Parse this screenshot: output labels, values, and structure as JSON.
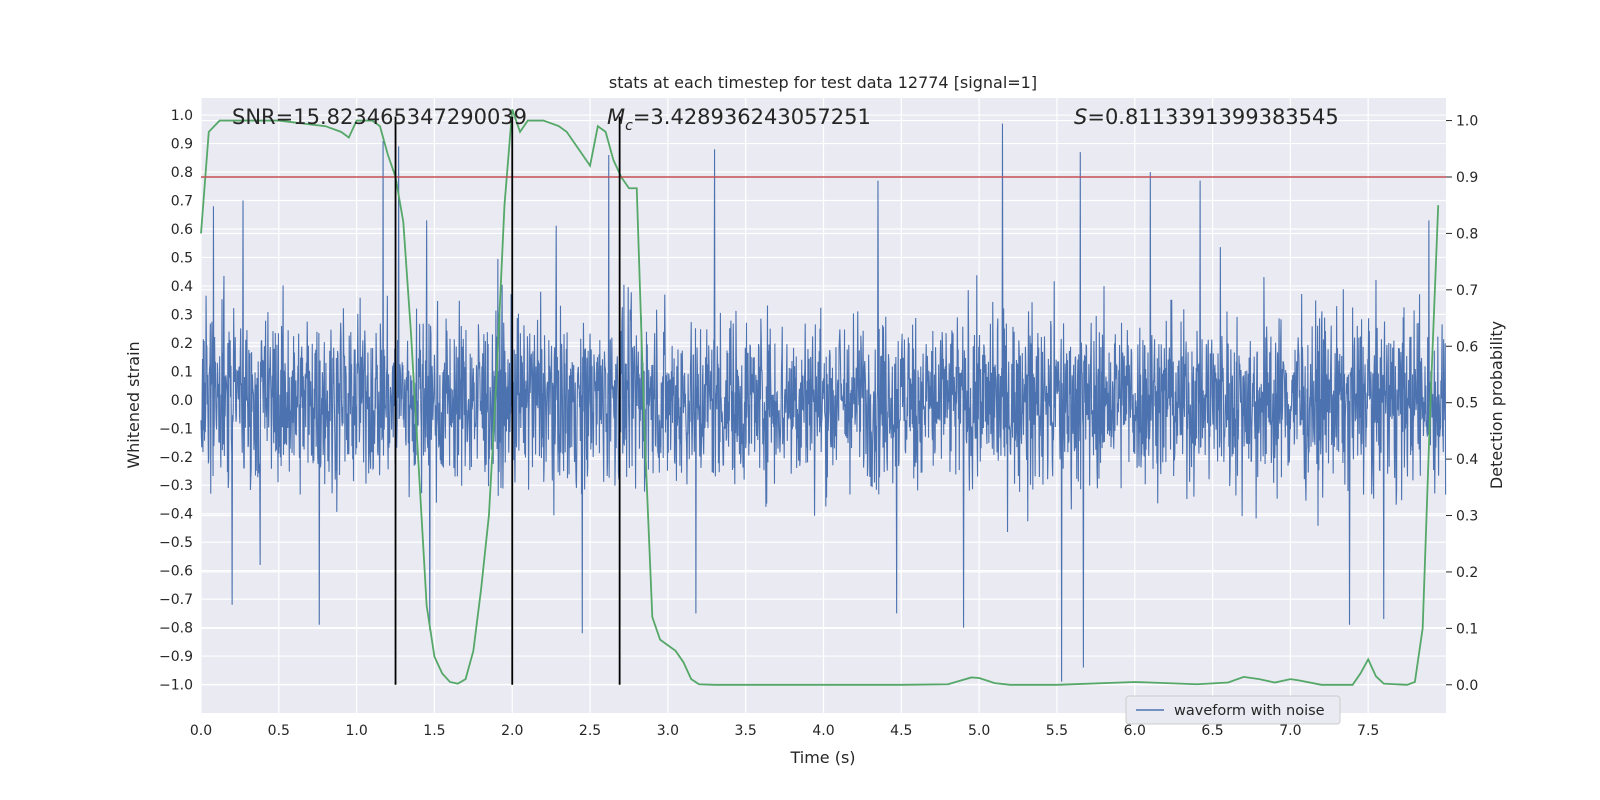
{
  "chart_data": {
    "type": "line",
    "title": "stats at each timestep for test data 12774 [signal=1]",
    "xlabel": "Time (s)",
    "ylabel_left": "Whitened strain",
    "ylabel_right": "Detection probability",
    "xlim": [
      0.0,
      8.0
    ],
    "ylim_left": [
      -1.1,
      1.06
    ],
    "ylim_right": [
      -0.05,
      1.04
    ],
    "x_ticks": [
      0.0,
      0.5,
      1.0,
      1.5,
      2.0,
      2.5,
      3.0,
      3.5,
      4.0,
      4.5,
      5.0,
      5.5,
      6.0,
      6.5,
      7.0,
      7.5
    ],
    "x_tick_labels": [
      "0.0",
      "0.5",
      "1.0",
      "1.5",
      "2.0",
      "2.5",
      "3.0",
      "3.5",
      "4.0",
      "4.5",
      "5.0",
      "5.5",
      "6.0",
      "6.5",
      "7.0",
      "7.5"
    ],
    "y_left_ticks": [
      1.0,
      0.9,
      0.8,
      0.7,
      0.6,
      0.5,
      0.4,
      0.3,
      0.2,
      0.1,
      0.0,
      -0.1,
      -0.2,
      -0.3,
      -0.4,
      -0.5,
      -0.6,
      -0.7,
      -0.8,
      -0.9,
      -1.0
    ],
    "y_left_tick_labels": [
      "1.0",
      "0.9",
      "0.8",
      "0.7",
      "0.6",
      "0.5",
      "0.4",
      "0.3",
      "0.2",
      "0.1",
      "0.0",
      "−0.1",
      "−0.2",
      "−0.3",
      "−0.4",
      "−0.5",
      "−0.6",
      "−0.7",
      "−0.8",
      "−0.9",
      "−1.0"
    ],
    "y_right_ticks": [
      1.0,
      0.9,
      0.8,
      0.7,
      0.6,
      0.5,
      0.4,
      0.3,
      0.2,
      0.1,
      0.0
    ],
    "y_right_tick_labels": [
      "1.0",
      "0.9",
      "0.8",
      "0.7",
      "0.6",
      "0.5",
      "0.4",
      "0.3",
      "0.2",
      "0.1",
      "0.0"
    ],
    "threshold_right": 0.9,
    "vertical_lines_x": [
      1.25,
      2.0,
      2.69
    ],
    "annotations": {
      "snr": "SNR=15.823465347290039",
      "mc_symbol": "M",
      "mc_sub": "c",
      "mc_value": "=3.428936243057251",
      "s_symbol": "S",
      "s_value": "=0.8113391399383545"
    },
    "legend": [
      "waveform with noise"
    ],
    "waveform": {
      "name": "waveform with noise",
      "typical_amplitude": 0.45,
      "spikes": [
        {
          "x": 0.08,
          "y": 0.68
        },
        {
          "x": 0.2,
          "y": -0.72
        },
        {
          "x": 0.27,
          "y": 0.7
        },
        {
          "x": 0.38,
          "y": -0.58
        },
        {
          "x": 0.76,
          "y": -0.79
        },
        {
          "x": 1.17,
          "y": 0.91
        },
        {
          "x": 1.27,
          "y": 0.89
        },
        {
          "x": 1.45,
          "y": 0.63
        },
        {
          "x": 1.47,
          "y": -0.81
        },
        {
          "x": 2.0,
          "y": 0.6
        },
        {
          "x": 2.45,
          "y": -0.82
        },
        {
          "x": 2.62,
          "y": 0.86
        },
        {
          "x": 3.3,
          "y": 0.88
        },
        {
          "x": 3.18,
          "y": -0.75
        },
        {
          "x": 4.35,
          "y": 0.77
        },
        {
          "x": 4.47,
          "y": -0.75
        },
        {
          "x": 4.9,
          "y": -0.8
        },
        {
          "x": 5.15,
          "y": 0.97
        },
        {
          "x": 5.53,
          "y": -0.99
        },
        {
          "x": 5.65,
          "y": 0.87
        },
        {
          "x": 5.67,
          "y": -0.94
        },
        {
          "x": 6.1,
          "y": 0.8
        },
        {
          "x": 6.42,
          "y": 0.77
        },
        {
          "x": 7.38,
          "y": -0.79
        },
        {
          "x": 7.6,
          "y": -0.77
        },
        {
          "x": 7.89,
          "y": 0.63
        }
      ]
    },
    "probability": {
      "name": "detection probability",
      "x": [
        0.0,
        0.05,
        0.12,
        0.25,
        0.5,
        0.8,
        0.9,
        0.95,
        1.0,
        1.1,
        1.15,
        1.2,
        1.25,
        1.3,
        1.35,
        1.4,
        1.45,
        1.5,
        1.55,
        1.6,
        1.65,
        1.7,
        1.75,
        1.8,
        1.85,
        1.9,
        1.95,
        2.0,
        2.05,
        2.1,
        2.2,
        2.3,
        2.35,
        2.45,
        2.5,
        2.55,
        2.6,
        2.65,
        2.7,
        2.75,
        2.8,
        2.85,
        2.9,
        2.95,
        3.0,
        3.05,
        3.1,
        3.15,
        3.2,
        3.3,
        3.5,
        4.0,
        4.5,
        4.8,
        4.95,
        5.0,
        5.1,
        5.2,
        5.5,
        6.0,
        6.4,
        6.6,
        6.7,
        6.8,
        6.9,
        7.0,
        7.05,
        7.2,
        7.4,
        7.45,
        7.5,
        7.55,
        7.6,
        7.75,
        7.8,
        7.85,
        7.9,
        7.95
      ],
      "y": [
        0.8,
        0.98,
        1.0,
        1.0,
        1.0,
        0.99,
        0.98,
        0.97,
        1.0,
        1.0,
        0.99,
        0.94,
        0.9,
        0.82,
        0.62,
        0.38,
        0.14,
        0.05,
        0.02,
        0.005,
        0.002,
        0.01,
        0.06,
        0.17,
        0.3,
        0.55,
        0.85,
        1.02,
        0.98,
        1.0,
        1.0,
        0.99,
        0.98,
        0.94,
        0.92,
        0.99,
        0.98,
        0.93,
        0.9,
        0.88,
        0.88,
        0.45,
        0.12,
        0.08,
        0.07,
        0.06,
        0.04,
        0.01,
        0.001,
        0.0,
        0.0,
        0.0,
        0.0,
        0.001,
        0.013,
        0.012,
        0.003,
        0.0,
        0.0,
        0.005,
        0.001,
        0.004,
        0.014,
        0.01,
        0.004,
        0.01,
        0.008,
        0.0,
        0.0,
        0.02,
        0.045,
        0.015,
        0.002,
        0.0,
        0.005,
        0.1,
        0.5,
        0.85
      ]
    },
    "colors": {
      "background": "#eaeaf2",
      "grid": "#ffffff",
      "waveform": "#4c72b0",
      "probability": "#55a868",
      "threshold": "#c44e52",
      "vlines": "#000000",
      "text": "#262626"
    }
  }
}
